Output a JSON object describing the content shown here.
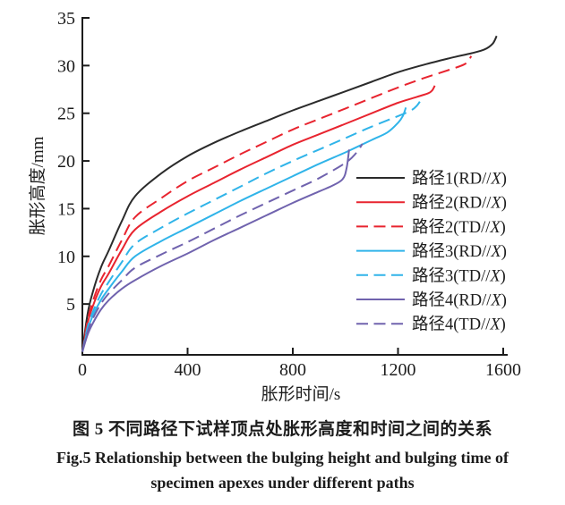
{
  "figure": {
    "caption_zh": "图 5  不同路径下试样顶点处胀形高度和时间之间的关系",
    "caption_en_line1": "Fig.5  Relationship between the bulging height and bulging time of",
    "caption_en_line2": "specimen apexes under different paths"
  },
  "chart_data": {
    "type": "line",
    "title": "",
    "xlabel": "胀形时间/s",
    "ylabel": "胀形高度/mm",
    "xlim": [
      0,
      1600
    ],
    "ylim": [
      0,
      35
    ],
    "x_ticks": [
      0,
      400,
      800,
      1200,
      1600
    ],
    "y_ticks": [
      5,
      10,
      15,
      20,
      25,
      30,
      35
    ],
    "grid": false,
    "legend_position": "inside-right",
    "axis_color": "#1c1c1c",
    "series": [
      {
        "name": "路径1(RD//X)",
        "color": "#2b2b2b",
        "style": "solid",
        "points": [
          [
            0,
            0
          ],
          [
            20,
            4.0
          ],
          [
            40,
            6.3
          ],
          [
            70,
            8.8
          ],
          [
            100,
            10.6
          ],
          [
            150,
            13.7
          ],
          [
            200,
            16.3
          ],
          [
            300,
            18.7
          ],
          [
            400,
            20.5
          ],
          [
            500,
            21.9
          ],
          [
            600,
            23.1
          ],
          [
            700,
            24.2
          ],
          [
            800,
            25.3
          ],
          [
            900,
            26.3
          ],
          [
            1000,
            27.3
          ],
          [
            1100,
            28.3
          ],
          [
            1200,
            29.3
          ],
          [
            1300,
            30.1
          ],
          [
            1400,
            30.8
          ],
          [
            1480,
            31.3
          ],
          [
            1530,
            31.7
          ],
          [
            1560,
            32.3
          ],
          [
            1575,
            33.1
          ]
        ]
      },
      {
        "name": "路径2(RD//X)",
        "color": "#e8242f",
        "style": "solid",
        "points": [
          [
            0,
            0
          ],
          [
            20,
            3.0
          ],
          [
            40,
            4.8
          ],
          [
            70,
            6.8
          ],
          [
            100,
            8.2
          ],
          [
            150,
            10.7
          ],
          [
            200,
            12.8
          ],
          [
            300,
            14.7
          ],
          [
            400,
            16.3
          ],
          [
            500,
            17.7
          ],
          [
            600,
            19.1
          ],
          [
            700,
            20.4
          ],
          [
            800,
            21.7
          ],
          [
            900,
            22.8
          ],
          [
            1000,
            23.9
          ],
          [
            1100,
            25.0
          ],
          [
            1200,
            26.1
          ],
          [
            1270,
            26.7
          ],
          [
            1315,
            27.1
          ],
          [
            1330,
            27.4
          ],
          [
            1340,
            27.9
          ]
        ]
      },
      {
        "name": "路径2(TD//X)",
        "color": "#e8242f",
        "style": "dashed",
        "points": [
          [
            0,
            0
          ],
          [
            20,
            3.3
          ],
          [
            40,
            5.3
          ],
          [
            70,
            7.5
          ],
          [
            100,
            9.0
          ],
          [
            150,
            11.7
          ],
          [
            200,
            14.1
          ],
          [
            300,
            16.1
          ],
          [
            400,
            17.9
          ],
          [
            500,
            19.3
          ],
          [
            600,
            20.7
          ],
          [
            700,
            22.0
          ],
          [
            800,
            23.3
          ],
          [
            900,
            24.4
          ],
          [
            1000,
            25.5
          ],
          [
            1100,
            26.6
          ],
          [
            1200,
            27.7
          ],
          [
            1300,
            28.7
          ],
          [
            1400,
            29.6
          ],
          [
            1450,
            30.1
          ],
          [
            1468,
            30.5
          ],
          [
            1478,
            31.0
          ]
        ]
      },
      {
        "name": "路径3(RD//X)",
        "color": "#30b4e9",
        "style": "solid",
        "points": [
          [
            0,
            0
          ],
          [
            20,
            2.3
          ],
          [
            40,
            3.8
          ],
          [
            70,
            5.4
          ],
          [
            100,
            6.6
          ],
          [
            150,
            8.4
          ],
          [
            200,
            10.0
          ],
          [
            300,
            11.6
          ],
          [
            400,
            13.0
          ],
          [
            500,
            14.4
          ],
          [
            600,
            15.8
          ],
          [
            700,
            17.1
          ],
          [
            800,
            18.4
          ],
          [
            900,
            19.7
          ],
          [
            1000,
            20.9
          ],
          [
            1100,
            22.2
          ],
          [
            1160,
            23.0
          ],
          [
            1200,
            24.0
          ],
          [
            1218,
            24.7
          ],
          [
            1230,
            25.6
          ]
        ]
      },
      {
        "name": "路径3(TD//X)",
        "color": "#30b4e9",
        "style": "dashed",
        "points": [
          [
            0,
            0
          ],
          [
            20,
            2.6
          ],
          [
            40,
            4.2
          ],
          [
            70,
            6.0
          ],
          [
            100,
            7.3
          ],
          [
            150,
            9.4
          ],
          [
            200,
            11.3
          ],
          [
            300,
            13.0
          ],
          [
            400,
            14.5
          ],
          [
            500,
            15.9
          ],
          [
            600,
            17.3
          ],
          [
            700,
            18.7
          ],
          [
            800,
            20.0
          ],
          [
            900,
            21.2
          ],
          [
            1000,
            22.4
          ],
          [
            1100,
            23.6
          ],
          [
            1200,
            24.7
          ],
          [
            1250,
            25.3
          ],
          [
            1272,
            25.8
          ],
          [
            1287,
            26.4
          ]
        ]
      },
      {
        "name": "路径4(RD//X)",
        "color": "#7063ae",
        "style": "solid",
        "points": [
          [
            0,
            0
          ],
          [
            20,
            1.8
          ],
          [
            40,
            3.0
          ],
          [
            70,
            4.4
          ],
          [
            100,
            5.4
          ],
          [
            150,
            6.6
          ],
          [
            200,
            7.5
          ],
          [
            300,
            9.0
          ],
          [
            400,
            10.3
          ],
          [
            500,
            11.7
          ],
          [
            600,
            13.0
          ],
          [
            700,
            14.3
          ],
          [
            800,
            15.6
          ],
          [
            900,
            16.8
          ],
          [
            950,
            17.4
          ],
          [
            990,
            18.1
          ],
          [
            1005,
            19.3
          ],
          [
            1014,
            21.2
          ]
        ]
      },
      {
        "name": "路径4(TD//X)",
        "color": "#7063ae",
        "style": "dashed",
        "points": [
          [
            0,
            0
          ],
          [
            20,
            2.1
          ],
          [
            40,
            3.5
          ],
          [
            70,
            5.0
          ],
          [
            100,
            6.1
          ],
          [
            150,
            7.5
          ],
          [
            200,
            8.8
          ],
          [
            300,
            10.2
          ],
          [
            400,
            11.5
          ],
          [
            500,
            12.9
          ],
          [
            600,
            14.3
          ],
          [
            700,
            15.6
          ],
          [
            800,
            16.9
          ],
          [
            900,
            18.2
          ],
          [
            1000,
            19.8
          ],
          [
            1040,
            20.8
          ],
          [
            1065,
            21.8
          ]
        ]
      }
    ]
  }
}
